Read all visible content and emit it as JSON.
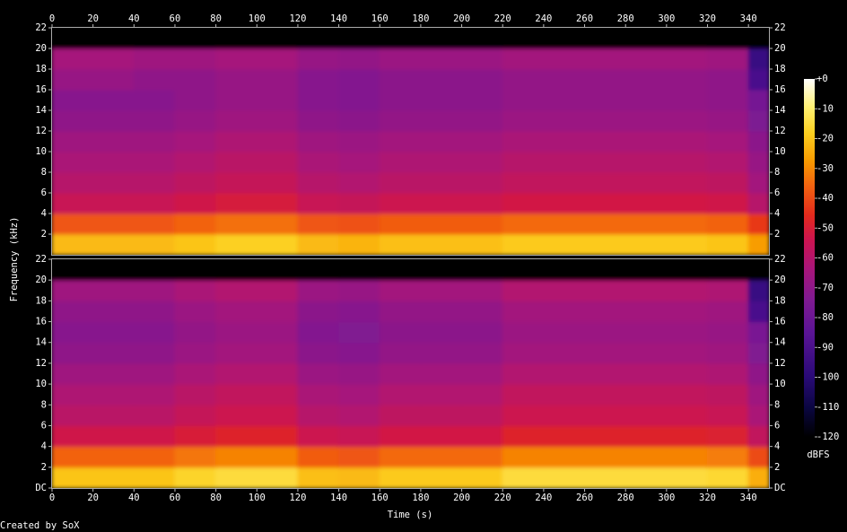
{
  "chart_data": [
    {
      "type": "heatmap",
      "xlim": [
        0,
        350
      ],
      "ylim": [
        0,
        22
      ],
      "xticks": [
        0,
        20,
        40,
        60,
        80,
        100,
        120,
        140,
        160,
        180,
        200,
        220,
        240,
        260,
        280,
        300,
        320,
        340
      ],
      "yticks": [
        2,
        4,
        6,
        8,
        10,
        12,
        14,
        16,
        18,
        20,
        22
      ],
      "x": [
        0,
        20,
        40,
        60,
        80,
        100,
        120,
        140,
        160,
        180,
        200,
        220,
        240,
        260,
        280,
        300,
        320,
        340,
        350
      ],
      "y": [
        0,
        2,
        4,
        6,
        8,
        10,
        12,
        14,
        16,
        18,
        20,
        22
      ],
      "z": [
        [
          -22,
          -22,
          -22,
          -20,
          -18,
          -18,
          -22,
          -23,
          -21,
          -21,
          -21,
          -19,
          -19,
          -19,
          -19,
          -19,
          -20,
          -27
        ],
        [
          -38,
          -38,
          -38,
          -36,
          -34,
          -34,
          -38,
          -39,
          -37,
          -37,
          -37,
          -35,
          -35,
          -35,
          -35,
          -35,
          -36,
          -43
        ],
        [
          -55,
          -55,
          -55,
          -53,
          -51,
          -51,
          -55,
          -56,
          -54,
          -54,
          -54,
          -52,
          -52,
          -52,
          -52,
          -52,
          -53,
          -60
        ],
        [
          -60,
          -60,
          -60,
          -58,
          -56,
          -56,
          -60,
          -61,
          -59,
          -59,
          -59,
          -57,
          -57,
          -57,
          -57,
          -57,
          -58,
          -65
        ],
        [
          -63,
          -63,
          -63,
          -61,
          -59,
          -59,
          -63,
          -64,
          -62,
          -62,
          -62,
          -60,
          -60,
          -60,
          -60,
          -60,
          -61,
          -68
        ],
        [
          -66,
          -66,
          -66,
          -64,
          -62,
          -62,
          -66,
          -67,
          -65,
          -65,
          -65,
          -63,
          -63,
          -63,
          -63,
          -63,
          -64,
          -71
        ],
        [
          -70,
          -70,
          -70,
          -68,
          -66,
          -66,
          -70,
          -71,
          -69,
          -69,
          -69,
          -67,
          -67,
          -67,
          -67,
          -67,
          -68,
          -75
        ],
        [
          -72,
          -72,
          -72,
          -70,
          -68,
          -68,
          -72,
          -73,
          -71,
          -71,
          -71,
          -69,
          -69,
          -69,
          -69,
          -69,
          -70,
          -77
        ],
        [
          -68,
          -68,
          -70,
          -70,
          -68,
          -68,
          -72,
          -73,
          -71,
          -71,
          -71,
          -69,
          -69,
          -69,
          -69,
          -69,
          -70,
          -90
        ],
        [
          -64,
          -64,
          -66,
          -66,
          -64,
          -64,
          -68,
          -69,
          -67,
          -67,
          -67,
          -65,
          -65,
          -65,
          -65,
          -65,
          -66,
          -95
        ],
        [
          -120,
          -120,
          -120,
          -120,
          -120,
          -120,
          -120,
          -120,
          -120,
          -120,
          -120,
          -120,
          -120,
          -120,
          -120,
          -120,
          -120,
          -120
        ]
      ]
    },
    {
      "type": "heatmap",
      "xlim": [
        0,
        350
      ],
      "ylim": [
        0,
        22
      ],
      "xticks": [
        0,
        20,
        40,
        60,
        80,
        100,
        120,
        140,
        160,
        180,
        200,
        220,
        240,
        260,
        280,
        300,
        320,
        340
      ],
      "yticks": [
        {
          "value": 0,
          "label": "DC"
        },
        2,
        4,
        6,
        8,
        10,
        12,
        14,
        16,
        18,
        20,
        22
      ],
      "x": [
        0,
        20,
        40,
        60,
        80,
        100,
        120,
        140,
        160,
        180,
        200,
        220,
        240,
        260,
        280,
        300,
        320,
        340,
        350
      ],
      "y": [
        0,
        2,
        4,
        6,
        8,
        10,
        12,
        14,
        16,
        18,
        20,
        22
      ],
      "z": [
        [
          -20,
          -20,
          -20,
          -17,
          -15,
          -15,
          -21,
          -22,
          -19,
          -19,
          -19,
          -15,
          -15,
          -15,
          -15,
          -15,
          -16,
          -24
        ],
        [
          -36,
          -36,
          -36,
          -33,
          -31,
          -31,
          -37,
          -38,
          -35,
          -35,
          -35,
          -31,
          -31,
          -31,
          -31,
          -31,
          -32,
          -40
        ],
        [
          -53,
          -53,
          -53,
          -50,
          -48,
          -48,
          -54,
          -55,
          -52,
          -52,
          -52,
          -48,
          -48,
          -48,
          -48,
          -48,
          -49,
          -57
        ],
        [
          -59,
          -59,
          -59,
          -56,
          -54,
          -54,
          -60,
          -61,
          -58,
          -58,
          -58,
          -54,
          -54,
          -54,
          -54,
          -54,
          -55,
          -63
        ],
        [
          -62,
          -62,
          -62,
          -59,
          -57,
          -57,
          -63,
          -64,
          -61,
          -61,
          -61,
          -57,
          -57,
          -57,
          -57,
          -57,
          -58,
          -66
        ],
        [
          -66,
          -66,
          -66,
          -63,
          -61,
          -61,
          -67,
          -68,
          -65,
          -65,
          -65,
          -61,
          -61,
          -61,
          -61,
          -61,
          -62,
          -70
        ],
        [
          -70,
          -70,
          -70,
          -67,
          -65,
          -65,
          -71,
          -72,
          -69,
          -69,
          -69,
          -65,
          -65,
          -65,
          -65,
          -65,
          -66,
          -74
        ],
        [
          -72,
          -72,
          -72,
          -69,
          -67,
          -67,
          -73,
          -74,
          -71,
          -71,
          -71,
          -67,
          -67,
          -67,
          -67,
          -67,
          -68,
          -76
        ],
        [
          -70,
          -70,
          -70,
          -67,
          -65,
          -65,
          -71,
          -72,
          -69,
          -69,
          -69,
          -65,
          -65,
          -65,
          -65,
          -65,
          -66,
          -90
        ],
        [
          -66,
          -66,
          -66,
          -63,
          -61,
          -61,
          -67,
          -68,
          -65,
          -65,
          -65,
          -61,
          -61,
          -61,
          -61,
          -61,
          -62,
          -95
        ],
        [
          -120,
          -120,
          -120,
          -120,
          -120,
          -120,
          -120,
          -120,
          -120,
          -120,
          -120,
          -120,
          -120,
          -120,
          -120,
          -120,
          -120,
          -120
        ]
      ]
    }
  ],
  "x_label": "Time (s)",
  "y_label": "Frequency (kHz)",
  "footer": "Created by SoX",
  "colorbar": {
    "label": "dBFS",
    "lim": [
      -120,
      0
    ],
    "ticks": [
      {
        "value": 0,
        "label": "+0"
      },
      -10,
      -20,
      -30,
      -40,
      -50,
      -60,
      -70,
      -80,
      -90,
      -100,
      -110,
      -120
    ]
  }
}
